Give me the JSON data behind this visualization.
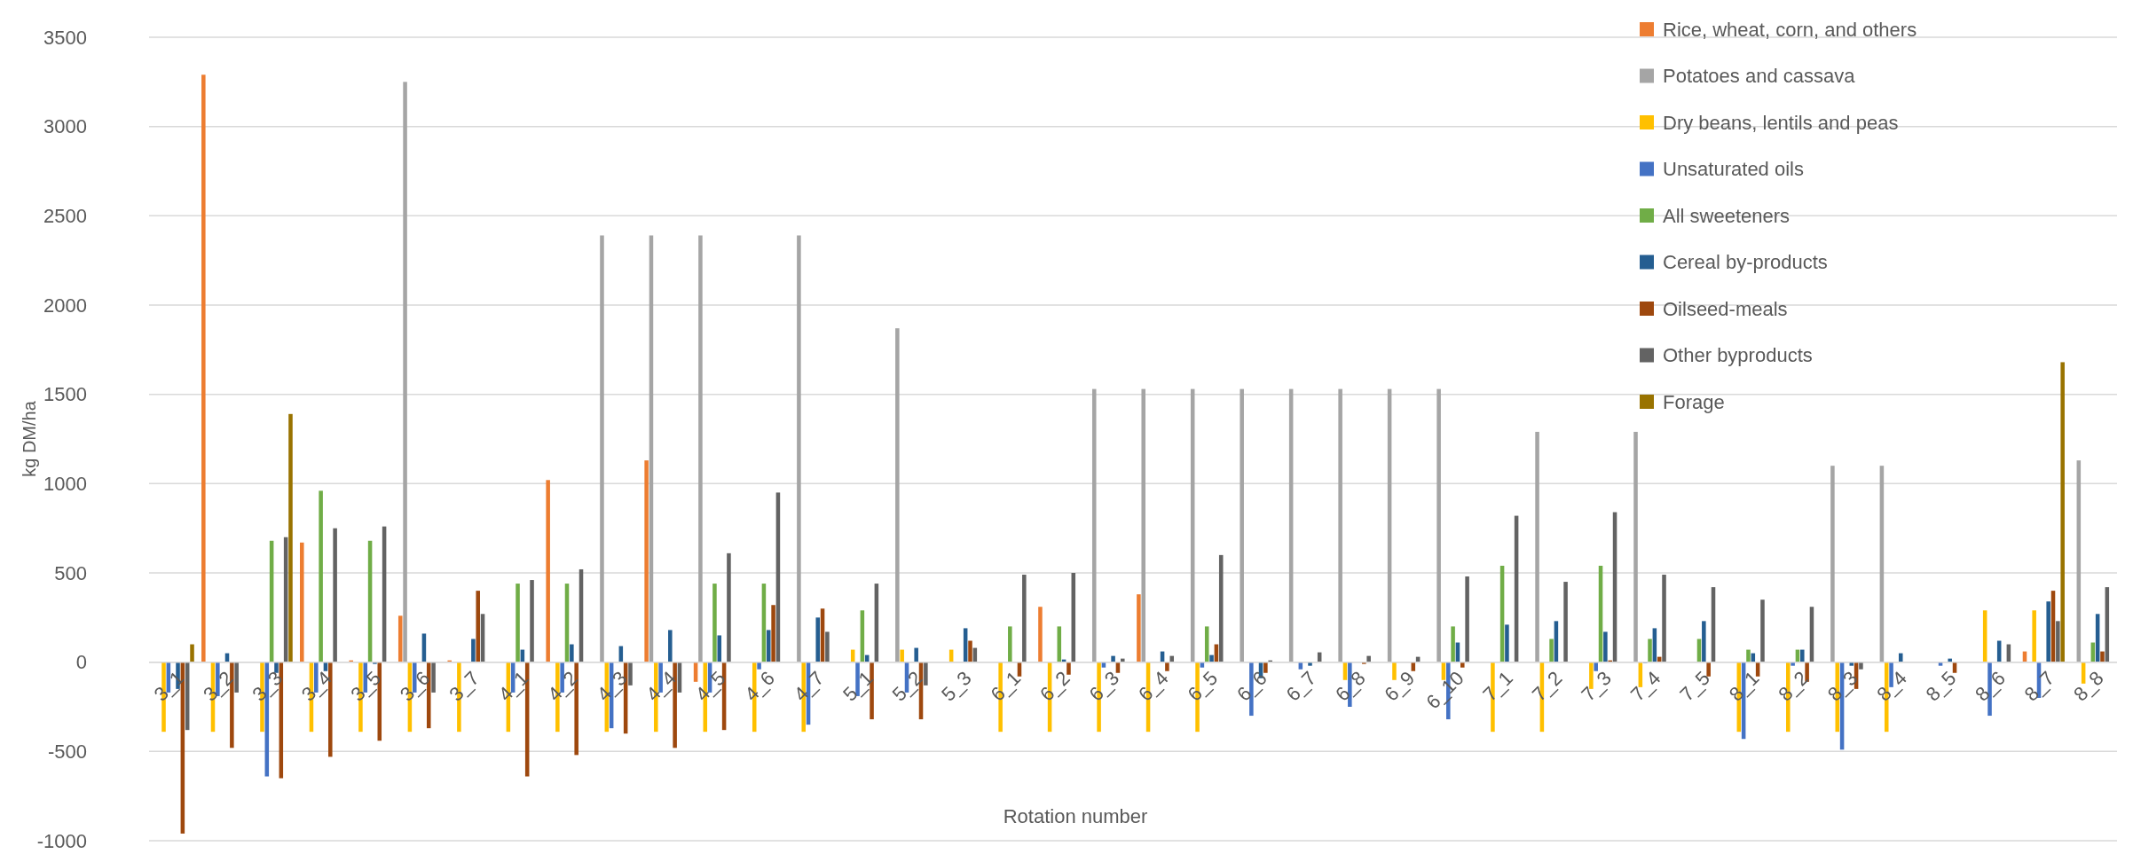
{
  "chart_data": {
    "type": "bar",
    "xlabel": "Rotation number",
    "ylabel": "kg DM/ha",
    "categories": [
      "3_1",
      "3_2",
      "3_3",
      "3_4",
      "3_5",
      "3_6",
      "3_7",
      "4_1",
      "4_2",
      "4_3",
      "4_4",
      "4_5",
      "4_6",
      "4_7",
      "5_1",
      "5_2",
      "5_3",
      "6_1",
      "6_2",
      "6_3",
      "6_4",
      "6_5",
      "6_6",
      "6_7",
      "6_8",
      "6_9",
      "6_10",
      "7_1",
      "7_2",
      "7_3",
      "7_4",
      "7_5",
      "8_1",
      "8_2",
      "8_3",
      "8_4",
      "8_5",
      "8_6",
      "8_7",
      "8_8"
    ],
    "series": [
      {
        "name": "Rice, wheat, corn, and others",
        "color": "#ed7d31",
        "values": [
          0,
          3290,
          0,
          670,
          10,
          260,
          10,
          0,
          1020,
          0,
          1130,
          -110,
          0,
          0,
          0,
          0,
          0,
          0,
          310,
          0,
          380,
          0,
          0,
          0,
          0,
          0,
          0,
          0,
          0,
          0,
          0,
          0,
          0,
          0,
          0,
          0,
          0,
          0,
          60,
          0
        ]
      },
      {
        "name": "Potatoes and cassava",
        "color": "#a5a5a5",
        "values": [
          0,
          0,
          0,
          0,
          0,
          3250,
          0,
          0,
          0,
          2390,
          2390,
          2390,
          0,
          2390,
          0,
          1870,
          0,
          0,
          0,
          1530,
          1530,
          1530,
          1530,
          1530,
          1530,
          1530,
          1530,
          0,
          1290,
          0,
          1290,
          0,
          0,
          0,
          1100,
          1100,
          0,
          0,
          0,
          1130
        ]
      },
      {
        "name": "Dry beans, lentils and peas",
        "color": "#ffc000",
        "values": [
          -390,
          -390,
          -390,
          -390,
          -390,
          -390,
          -390,
          -390,
          -390,
          -390,
          -390,
          -390,
          -390,
          -390,
          70,
          70,
          70,
          -390,
          -390,
          -390,
          -390,
          -390,
          0,
          0,
          -100,
          -100,
          -100,
          -390,
          -390,
          -150,
          -140,
          0,
          -390,
          -390,
          -390,
          -390,
          0,
          290,
          290,
          -120
        ]
      },
      {
        "name": "Unsaturated oils",
        "color": "#4472c4",
        "values": [
          -170,
          -190,
          -640,
          -170,
          -170,
          -170,
          0,
          -170,
          -170,
          -370,
          -170,
          -170,
          -40,
          -350,
          -190,
          -170,
          0,
          0,
          0,
          -30,
          0,
          -30,
          -300,
          -40,
          -250,
          0,
          -320,
          0,
          0,
          -50,
          -5,
          0,
          -430,
          -20,
          -490,
          -140,
          -20,
          -300,
          -200,
          0
        ]
      },
      {
        "name": "All sweeteners",
        "color": "#70ad47",
        "values": [
          0,
          0,
          680,
          960,
          680,
          0,
          0,
          440,
          440,
          0,
          0,
          440,
          440,
          0,
          290,
          0,
          0,
          200,
          200,
          0,
          0,
          200,
          0,
          0,
          0,
          0,
          200,
          540,
          130,
          540,
          130,
          130,
          70,
          70,
          0,
          0,
          0,
          0,
          0,
          110
        ]
      },
      {
        "name": "Cereal by-products",
        "color": "#255e91",
        "values": [
          -150,
          50,
          -60,
          -50,
          -10,
          160,
          130,
          70,
          100,
          90,
          180,
          150,
          180,
          250,
          40,
          80,
          190,
          0,
          15,
          35,
          60,
          40,
          -90,
          -20,
          0,
          0,
          110,
          210,
          230,
          170,
          190,
          230,
          50,
          70,
          -20,
          50,
          20,
          120,
          340,
          270
        ]
      },
      {
        "name": "Oilseed-meals",
        "color": "#9e480e",
        "values": [
          -960,
          -480,
          -650,
          -530,
          -440,
          -370,
          400,
          -640,
          -520,
          -400,
          -480,
          -380,
          320,
          300,
          -320,
          -320,
          120,
          -80,
          -70,
          -60,
          -50,
          100,
          -60,
          0,
          -10,
          -50,
          -30,
          0,
          0,
          10,
          30,
          -80,
          -80,
          -110,
          -150,
          0,
          -60,
          0,
          400,
          60
        ]
      },
      {
        "name": "Other byproducts",
        "color": "#636363",
        "values": [
          -380,
          -170,
          700,
          750,
          760,
          -170,
          270,
          460,
          520,
          -130,
          -170,
          610,
          950,
          170,
          440,
          -130,
          80,
          490,
          500,
          20,
          35,
          600,
          10,
          55,
          35,
          30,
          480,
          820,
          450,
          840,
          490,
          420,
          350,
          310,
          -40,
          0,
          0,
          100,
          230,
          420
        ]
      },
      {
        "name": "Forage",
        "color": "#997300",
        "values": [
          100,
          0,
          1390,
          0,
          0,
          0,
          0,
          0,
          0,
          0,
          0,
          0,
          0,
          0,
          0,
          0,
          0,
          0,
          0,
          0,
          0,
          0,
          0,
          0,
          0,
          0,
          0,
          0,
          0,
          0,
          0,
          0,
          0,
          0,
          0,
          0,
          0,
          0,
          1680,
          0
        ]
      }
    ],
    "ylim": [
      -1000,
      3500
    ],
    "yticks": [
      -1000,
      -500,
      0,
      500,
      1000,
      1500,
      2000,
      2500,
      3000,
      3500
    ],
    "grid": "y",
    "legend": "top right"
  }
}
